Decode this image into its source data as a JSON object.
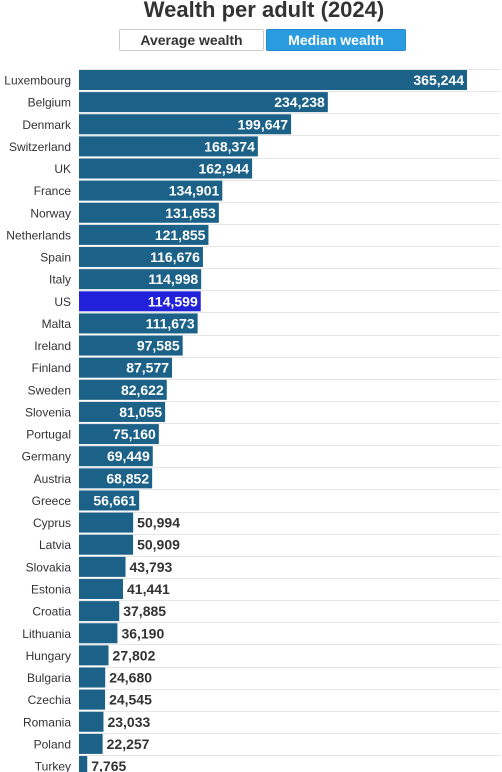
{
  "header": {
    "title": "Wealth per adult (2024)",
    "toggles": [
      {
        "label": "Average wealth",
        "active": false
      },
      {
        "label": "Median wealth",
        "active": true
      }
    ]
  },
  "colors": {
    "bar": "#1c6187",
    "highlight_bar": "#2222dd",
    "toggle_active_bg": "#2b9be0",
    "gridline": "#e6e6e6",
    "label_outside": "#333333",
    "label_inside": "#ffffff"
  },
  "chart_data": {
    "type": "bar",
    "orientation": "horizontal",
    "title": "Wealth per adult (2024)",
    "categories": [
      "Luxembourg",
      "Belgium",
      "Denmark",
      "Switzerland",
      "UK",
      "France",
      "Norway",
      "Netherlands",
      "Spain",
      "Italy",
      "US",
      "Malta",
      "Ireland",
      "Finland",
      "Sweden",
      "Slovenia",
      "Portugal",
      "Germany",
      "Austria",
      "Greece",
      "Cyprus",
      "Latvia",
      "Slovakia",
      "Estonia",
      "Croatia",
      "Lithuania",
      "Hungary",
      "Bulgaria",
      "Czechia",
      "Romania",
      "Poland",
      "Turkey"
    ],
    "values": [
      365244,
      234238,
      199647,
      168374,
      162944,
      134901,
      131653,
      121855,
      116676,
      114998,
      114599,
      111673,
      97585,
      87577,
      82622,
      81055,
      75160,
      69449,
      68852,
      56661,
      50994,
      50909,
      43793,
      41441,
      37885,
      36190,
      27802,
      24680,
      24545,
      23033,
      22257,
      7765
    ],
    "value_labels": [
      "365,244",
      "234,238",
      "199,647",
      "168,374",
      "162,944",
      "134,901",
      "131,653",
      "121,855",
      "116,676",
      "114,998",
      "114,599",
      "111,673",
      "97,585",
      "87,577",
      "82,622",
      "81,055",
      "75,160",
      "69,449",
      "68,852",
      "56,661",
      "50,994",
      "50,909",
      "43,793",
      "41,441",
      "37,885",
      "36,190",
      "27,802",
      "24,680",
      "24,545",
      "23,033",
      "22,257",
      "7,765"
    ],
    "highlight": "US",
    "xlim": [
      0,
      400000
    ],
    "grid": true,
    "legend": "none"
  }
}
